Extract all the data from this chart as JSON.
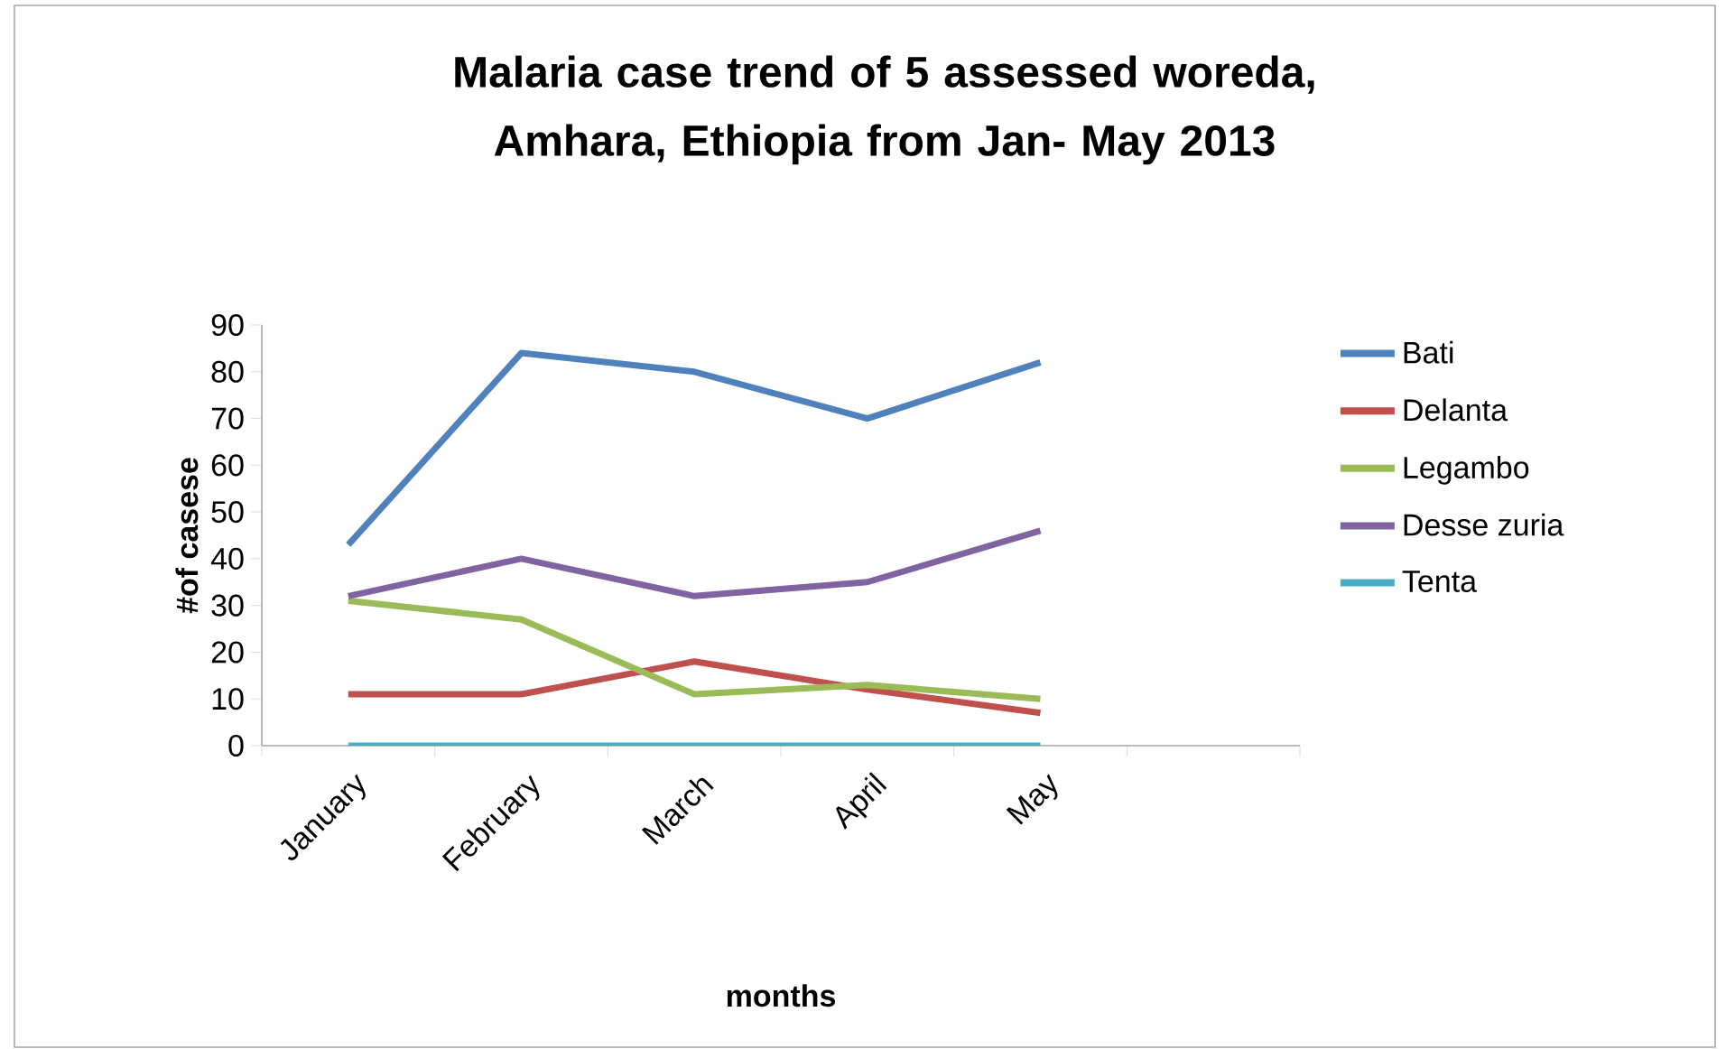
{
  "chart_data": {
    "type": "line",
    "title": "Malaria case trend of 5 assessed woreda, Amhara, Ethiopia from Jan- May 2013",
    "xlabel": "months",
    "ylabel": "#of casese",
    "categories": [
      "January",
      "February",
      "March",
      "April",
      "May",
      null
    ],
    "ylim": [
      0,
      90
    ],
    "yticks": [
      0,
      10,
      20,
      30,
      40,
      50,
      60,
      70,
      80,
      90
    ],
    "series": [
      {
        "name": "Bati",
        "color": "#4f81bd",
        "values": [
          43,
          84,
          80,
          70,
          82,
          null
        ]
      },
      {
        "name": "Delanta",
        "color": "#c0504d",
        "values": [
          11,
          11,
          18,
          12,
          7,
          null
        ]
      },
      {
        "name": "Legambo",
        "color": "#9bbb59",
        "values": [
          31,
          27,
          11,
          13,
          10,
          null
        ]
      },
      {
        "name": "Desse zuria",
        "color": "#8064a2",
        "values": [
          32,
          40,
          32,
          35,
          46,
          null
        ]
      },
      {
        "name": "Tenta",
        "color": "#4bacc6",
        "values": [
          0,
          0,
          0,
          0,
          0,
          null
        ]
      }
    ],
    "legend": "right",
    "grid": false,
    "marker": "none",
    "line_style": "solid"
  }
}
